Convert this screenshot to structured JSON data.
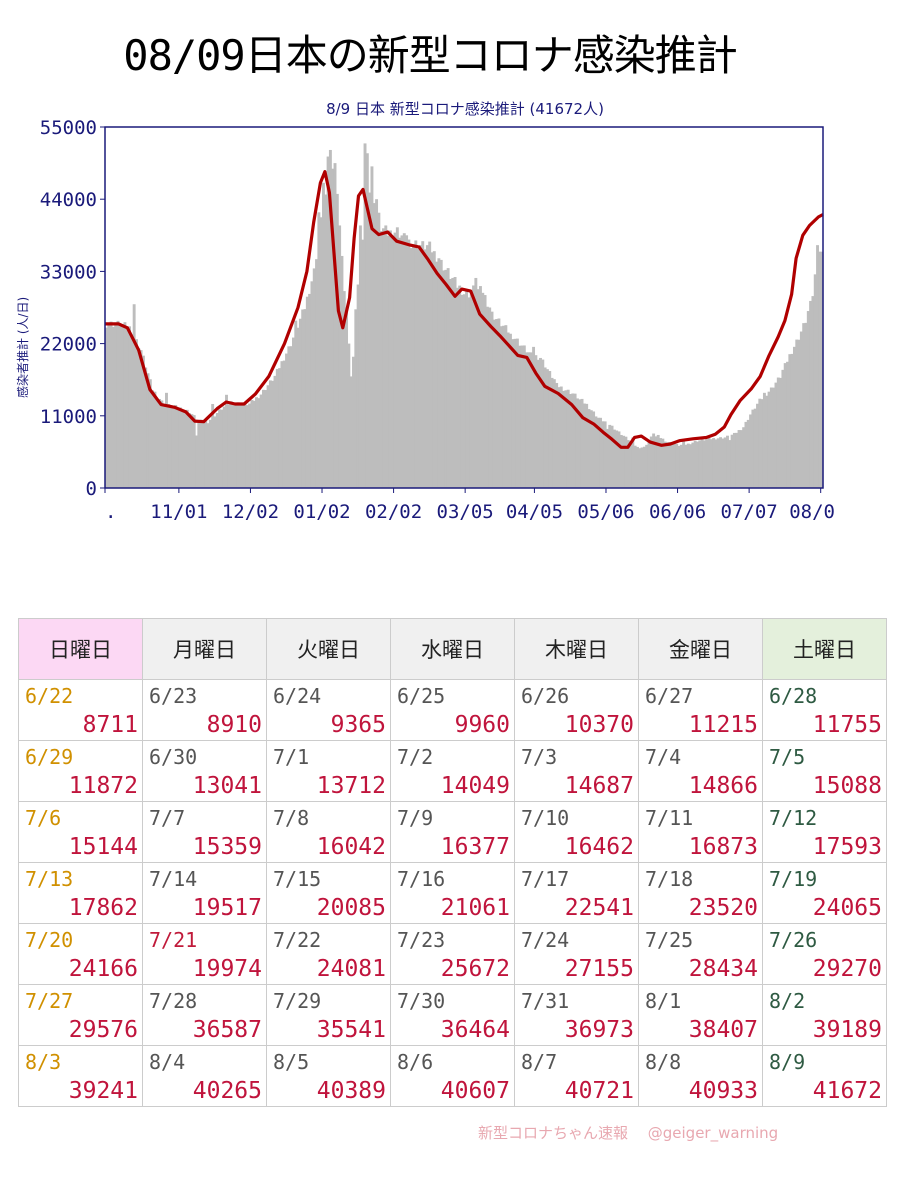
{
  "header": {
    "title": "08/09日本の新型コロナ感染推計"
  },
  "chart_data": {
    "type": "bar+line",
    "title": "8/9 日本 新型コロナ感染推計 (41672人)",
    "ylabel": "感染者推計 (人/日)",
    "ylim": [
      0,
      55000
    ],
    "yticks": [
      "55000",
      "44000",
      "33000",
      "22000",
      "11000",
      "0"
    ],
    "ytick_values": [
      55000,
      44000,
      33000,
      22000,
      11000,
      0
    ],
    "xtick_labels": [
      ".",
      "11/01",
      "12/02",
      "01/02",
      "02/02",
      "03/05",
      "04/05",
      "05/06",
      "06/06",
      "07/07",
      "08/0"
    ],
    "xtick_days": [
      0,
      32,
      63,
      94,
      125,
      156,
      186,
      217,
      248,
      279,
      310
    ],
    "n_days": 311,
    "bar_color": "#bdbdbd",
    "line_color": "#b00000",
    "trend_keypoints": [
      [
        0,
        25000
      ],
      [
        6,
        25000
      ],
      [
        10,
        24400
      ],
      [
        15,
        21000
      ],
      [
        20,
        15000
      ],
      [
        25,
        12700
      ],
      [
        31,
        12300
      ],
      [
        36,
        11600
      ],
      [
        40,
        10200
      ],
      [
        44,
        10100
      ],
      [
        50,
        12100
      ],
      [
        54,
        13100
      ],
      [
        58,
        12800
      ],
      [
        62,
        12800
      ],
      [
        67,
        14300
      ],
      [
        73,
        17000
      ],
      [
        80,
        22000
      ],
      [
        86,
        27500
      ],
      [
        90,
        33000
      ],
      [
        93,
        40500
      ],
      [
        96,
        46500
      ],
      [
        98,
        48200
      ],
      [
        100,
        45000
      ],
      [
        102,
        36000
      ],
      [
        104,
        27000
      ],
      [
        106,
        24400
      ],
      [
        109,
        29000
      ],
      [
        111,
        38000
      ],
      [
        113,
        44500
      ],
      [
        115,
        45500
      ],
      [
        117,
        42500
      ],
      [
        119,
        39500
      ],
      [
        122,
        38600
      ],
      [
        126,
        39000
      ],
      [
        130,
        37600
      ],
      [
        136,
        37000
      ],
      [
        140,
        36700
      ],
      [
        144,
        34800
      ],
      [
        148,
        32700
      ],
      [
        152,
        31000
      ],
      [
        156,
        29200
      ],
      [
        159,
        30300
      ],
      [
        163,
        30000
      ],
      [
        167,
        26500
      ],
      [
        172,
        24600
      ],
      [
        176,
        23200
      ],
      [
        180,
        21700
      ],
      [
        184,
        20200
      ],
      [
        188,
        19900
      ],
      [
        192,
        17500
      ],
      [
        196,
        15500
      ],
      [
        202,
        14400
      ],
      [
        208,
        12700
      ],
      [
        213,
        10700
      ],
      [
        218,
        9700
      ],
      [
        222,
        8500
      ],
      [
        226,
        7400
      ],
      [
        230,
        6200
      ],
      [
        233,
        6200
      ],
      [
        236,
        7700
      ],
      [
        239,
        7900
      ],
      [
        243,
        7000
      ],
      [
        248,
        6500
      ],
      [
        252,
        6700
      ],
      [
        256,
        7200
      ],
      [
        262,
        7500
      ],
      [
        268,
        7700
      ],
      [
        272,
        8200
      ],
      [
        276,
        9300
      ],
      [
        279,
        11200
      ],
      [
        283,
        13300
      ],
      [
        288,
        15100
      ],
      [
        292,
        17000
      ],
      [
        296,
        20200
      ],
      [
        300,
        23000
      ],
      [
        303,
        25500
      ],
      [
        306,
        29500
      ],
      [
        308,
        35000
      ],
      [
        311,
        38500
      ],
      [
        314,
        40000
      ],
      [
        318,
        41300
      ],
      [
        320,
        41672
      ]
    ],
    "spikes": [
      [
        12,
        28000
      ],
      [
        22,
        13500
      ],
      [
        26,
        14500
      ],
      [
        39,
        8000
      ],
      [
        46,
        12800
      ],
      [
        52,
        14200
      ],
      [
        82,
        25500
      ],
      [
        92,
        42000
      ],
      [
        94,
        46500
      ],
      [
        96,
        50500
      ],
      [
        97,
        51500
      ],
      [
        99,
        49500
      ],
      [
        101,
        40000
      ],
      [
        103,
        30000
      ],
      [
        105,
        22000
      ],
      [
        106,
        17000
      ],
      [
        107,
        20000
      ],
      [
        109,
        31000
      ],
      [
        110,
        40000
      ],
      [
        112,
        52500
      ],
      [
        113,
        51000
      ],
      [
        115,
        49000
      ],
      [
        117,
        44000
      ],
      [
        121,
        40000
      ],
      [
        130,
        38500
      ],
      [
        139,
        37000
      ],
      [
        144,
        35000
      ],
      [
        148,
        33500
      ],
      [
        152,
        30500
      ],
      [
        156,
        30000
      ],
      [
        160,
        32000
      ],
      [
        166,
        27500
      ],
      [
        175,
        23500
      ],
      [
        185,
        21500
      ],
      [
        195,
        16000
      ],
      [
        205,
        13500
      ],
      [
        217,
        9000
      ],
      [
        228,
        7700
      ],
      [
        237,
        8300
      ],
      [
        250,
        7200
      ],
      [
        270,
        7300
      ],
      [
        285,
        14500
      ],
      [
        293,
        18000
      ],
      [
        305,
        28500
      ],
      [
        308,
        37000
      ],
      [
        310,
        36000
      ],
      [
        312,
        37500
      ],
      [
        316,
        41500
      ]
    ]
  },
  "table": {
    "headers": [
      "日曜日",
      "月曜日",
      "火曜日",
      "水曜日",
      "木曜日",
      "金曜日",
      "土曜日"
    ],
    "rows": [
      [
        {
          "d": "6/22",
          "v": "8711"
        },
        {
          "d": "6/23",
          "v": "8910"
        },
        {
          "d": "6/24",
          "v": "9365"
        },
        {
          "d": "6/25",
          "v": "9960"
        },
        {
          "d": "6/26",
          "v": "10370"
        },
        {
          "d": "6/27",
          "v": "11215"
        },
        {
          "d": "6/28",
          "v": "11755"
        }
      ],
      [
        {
          "d": "6/29",
          "v": "11872"
        },
        {
          "d": "6/30",
          "v": "13041"
        },
        {
          "d": "7/1",
          "v": "13712"
        },
        {
          "d": "7/2",
          "v": "14049"
        },
        {
          "d": "7/3",
          "v": "14687"
        },
        {
          "d": "7/4",
          "v": "14866"
        },
        {
          "d": "7/5",
          "v": "15088"
        }
      ],
      [
        {
          "d": "7/6",
          "v": "15144"
        },
        {
          "d": "7/7",
          "v": "15359"
        },
        {
          "d": "7/8",
          "v": "16042"
        },
        {
          "d": "7/9",
          "v": "16377"
        },
        {
          "d": "7/10",
          "v": "16462"
        },
        {
          "d": "7/11",
          "v": "16873"
        },
        {
          "d": "7/12",
          "v": "17593"
        }
      ],
      [
        {
          "d": "7/13",
          "v": "17862"
        },
        {
          "d": "7/14",
          "v": "19517"
        },
        {
          "d": "7/15",
          "v": "20085"
        },
        {
          "d": "7/16",
          "v": "21061"
        },
        {
          "d": "7/17",
          "v": "22541"
        },
        {
          "d": "7/18",
          "v": "23520"
        },
        {
          "d": "7/19",
          "v": "24065"
        }
      ],
      [
        {
          "d": "7/20",
          "v": "24166"
        },
        {
          "d": "7/21",
          "v": "19974",
          "hol": true
        },
        {
          "d": "7/22",
          "v": "24081"
        },
        {
          "d": "7/23",
          "v": "25672"
        },
        {
          "d": "7/24",
          "v": "27155"
        },
        {
          "d": "7/25",
          "v": "28434"
        },
        {
          "d": "7/26",
          "v": "29270"
        }
      ],
      [
        {
          "d": "7/27",
          "v": "29576"
        },
        {
          "d": "7/28",
          "v": "36587"
        },
        {
          "d": "7/29",
          "v": "35541"
        },
        {
          "d": "7/30",
          "v": "36464"
        },
        {
          "d": "7/31",
          "v": "36973"
        },
        {
          "d": "8/1",
          "v": "38407"
        },
        {
          "d": "8/2",
          "v": "39189"
        }
      ],
      [
        {
          "d": "8/3",
          "v": "39241"
        },
        {
          "d": "8/4",
          "v": "40265"
        },
        {
          "d": "8/5",
          "v": "40389"
        },
        {
          "d": "8/6",
          "v": "40607"
        },
        {
          "d": "8/7",
          "v": "40721"
        },
        {
          "d": "8/8",
          "v": "40933"
        },
        {
          "d": "8/9",
          "v": "41672"
        }
      ]
    ]
  },
  "credit": "新型コロナちゃん速報　 @geiger_warning"
}
